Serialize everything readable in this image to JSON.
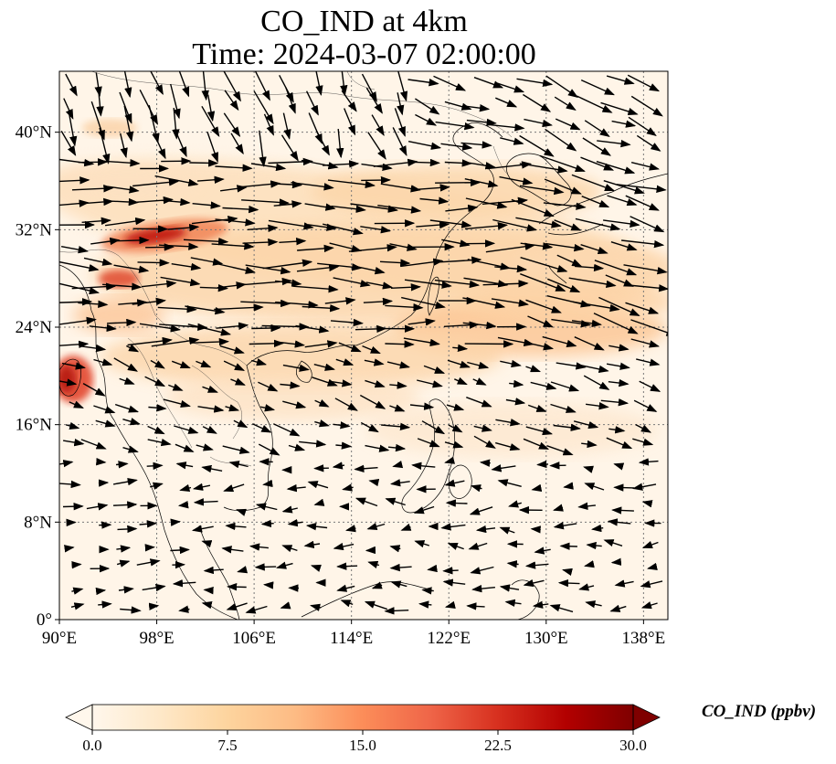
{
  "title": {
    "line1": "CO_IND at 4km",
    "line2": "Time: 2024-03-07 02:00:00"
  },
  "axes": {
    "lon_ticks": [
      "90°E",
      "98°E",
      "106°E",
      "114°E",
      "122°E",
      "130°E",
      "138°E"
    ],
    "lat_ticks": [
      "0°",
      "8°N",
      "16°N",
      "24°N",
      "32°N",
      "40°N"
    ],
    "lon_values": [
      90,
      98,
      106,
      114,
      122,
      130,
      138
    ],
    "lat_values": [
      0,
      8,
      16,
      24,
      32,
      40
    ],
    "lon_range": [
      90,
      140
    ],
    "lat_range": [
      0,
      45
    ],
    "grid": "dotted"
  },
  "colorbar": {
    "label": "CO_IND (ppbv)",
    "ticks": [
      "0.0",
      "7.5",
      "15.0",
      "22.5",
      "30.0"
    ],
    "tick_values": [
      0,
      7.5,
      15,
      22.5,
      30
    ],
    "range": [
      0,
      30
    ],
    "extend": "both",
    "colormap": "OrRd",
    "colors": [
      "#fff7ec",
      "#fee8c8",
      "#fdd49e",
      "#fdbb84",
      "#fc8d59",
      "#ef6548",
      "#d7301f",
      "#b30000",
      "#7f0000"
    ]
  },
  "colors": {
    "coastline": "#000000",
    "gridline": "#777777",
    "wind_arrow": "#000000"
  }
}
